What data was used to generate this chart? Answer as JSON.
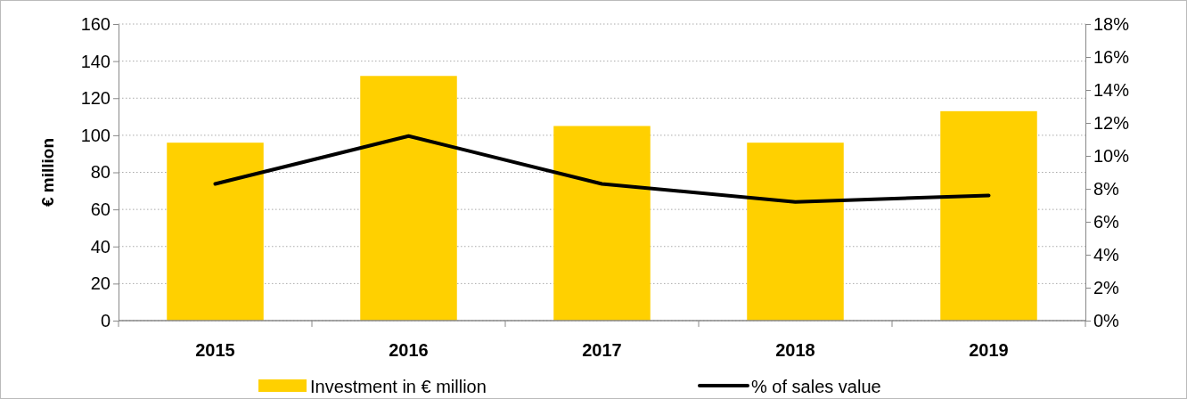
{
  "chart_data": {
    "type": "bar",
    "ylabel": "€ million",
    "categories": [
      "2015",
      "2016",
      "2017",
      "2018",
      "2019"
    ],
    "series": [
      {
        "name": "Investment in € million",
        "color": "#ffd000",
        "values": [
          96,
          132,
          105,
          96,
          113
        ]
      },
      {
        "name": "% of sales value",
        "type": "line",
        "axis": "y2",
        "color": "#000000",
        "values": [
          8.3,
          11.2,
          8.3,
          7.2,
          7.6
        ]
      }
    ],
    "ylim": [
      0,
      160
    ],
    "yticks": [
      0,
      20,
      40,
      60,
      80,
      100,
      120,
      140,
      160
    ],
    "y2lim": [
      0,
      18
    ],
    "y2ticks": [
      {
        "value": 0,
        "label": "0%"
      },
      {
        "value": 2,
        "label": "2%"
      },
      {
        "value": 4,
        "label": "4%"
      },
      {
        "value": 6,
        "label": "6%"
      },
      {
        "value": 8,
        "label": "8%"
      },
      {
        "value": 10,
        "label": "10%"
      },
      {
        "value": 12,
        "label": "12%"
      },
      {
        "value": 14,
        "label": "14%"
      },
      {
        "value": 16,
        "label": "16%"
      },
      {
        "value": 18,
        "label": "18%"
      }
    ],
    "grid": "y",
    "legend": "bottom",
    "marker": "none",
    "line_style": "solid"
  }
}
